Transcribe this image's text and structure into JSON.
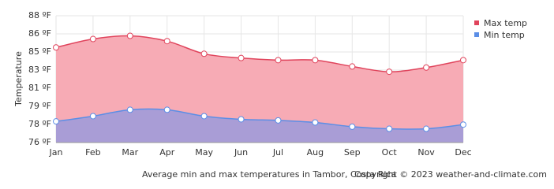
{
  "chart_data": {
    "type": "area",
    "y_label": "Temperature",
    "caption": "Average min and max temperatures in Tambor, Costa Rica",
    "copyright": "Copyright © 2023  weather-and-climate.com",
    "categories": [
      "Jan",
      "Feb",
      "Mar",
      "Apr",
      "May",
      "Jun",
      "Jul",
      "Aug",
      "Sep",
      "Oct",
      "Nov",
      "Dec"
    ],
    "series": [
      {
        "name": "Max temp",
        "color": "#e0445c",
        "fill": "#f7abb5",
        "values": [
          85.0,
          85.8,
          86.1,
          85.6,
          84.4,
          84.0,
          83.8,
          83.8,
          83.2,
          82.7,
          83.1,
          83.8
        ]
      },
      {
        "name": "Min temp",
        "color": "#5b8ee6",
        "fill": "#a99dd6",
        "values": [
          78.0,
          78.5,
          79.1,
          79.1,
          78.5,
          78.2,
          78.1,
          77.9,
          77.5,
          77.3,
          77.3,
          77.7
        ]
      }
    ],
    "ylim": [
      76,
      88
    ],
    "yticks": [
      {
        "value": 76,
        "label": "76 ºF"
      },
      {
        "value": 77.71,
        "label": "78 ºF"
      },
      {
        "value": 79.43,
        "label": "79 ºF"
      },
      {
        "value": 81.14,
        "label": "81 ºF"
      },
      {
        "value": 82.86,
        "label": "83 ºF"
      },
      {
        "value": 84.57,
        "label": "85 ºF"
      },
      {
        "value": 86.29,
        "label": "86 ºF"
      },
      {
        "value": 88,
        "label": "88 ºF"
      }
    ],
    "grid": true
  }
}
